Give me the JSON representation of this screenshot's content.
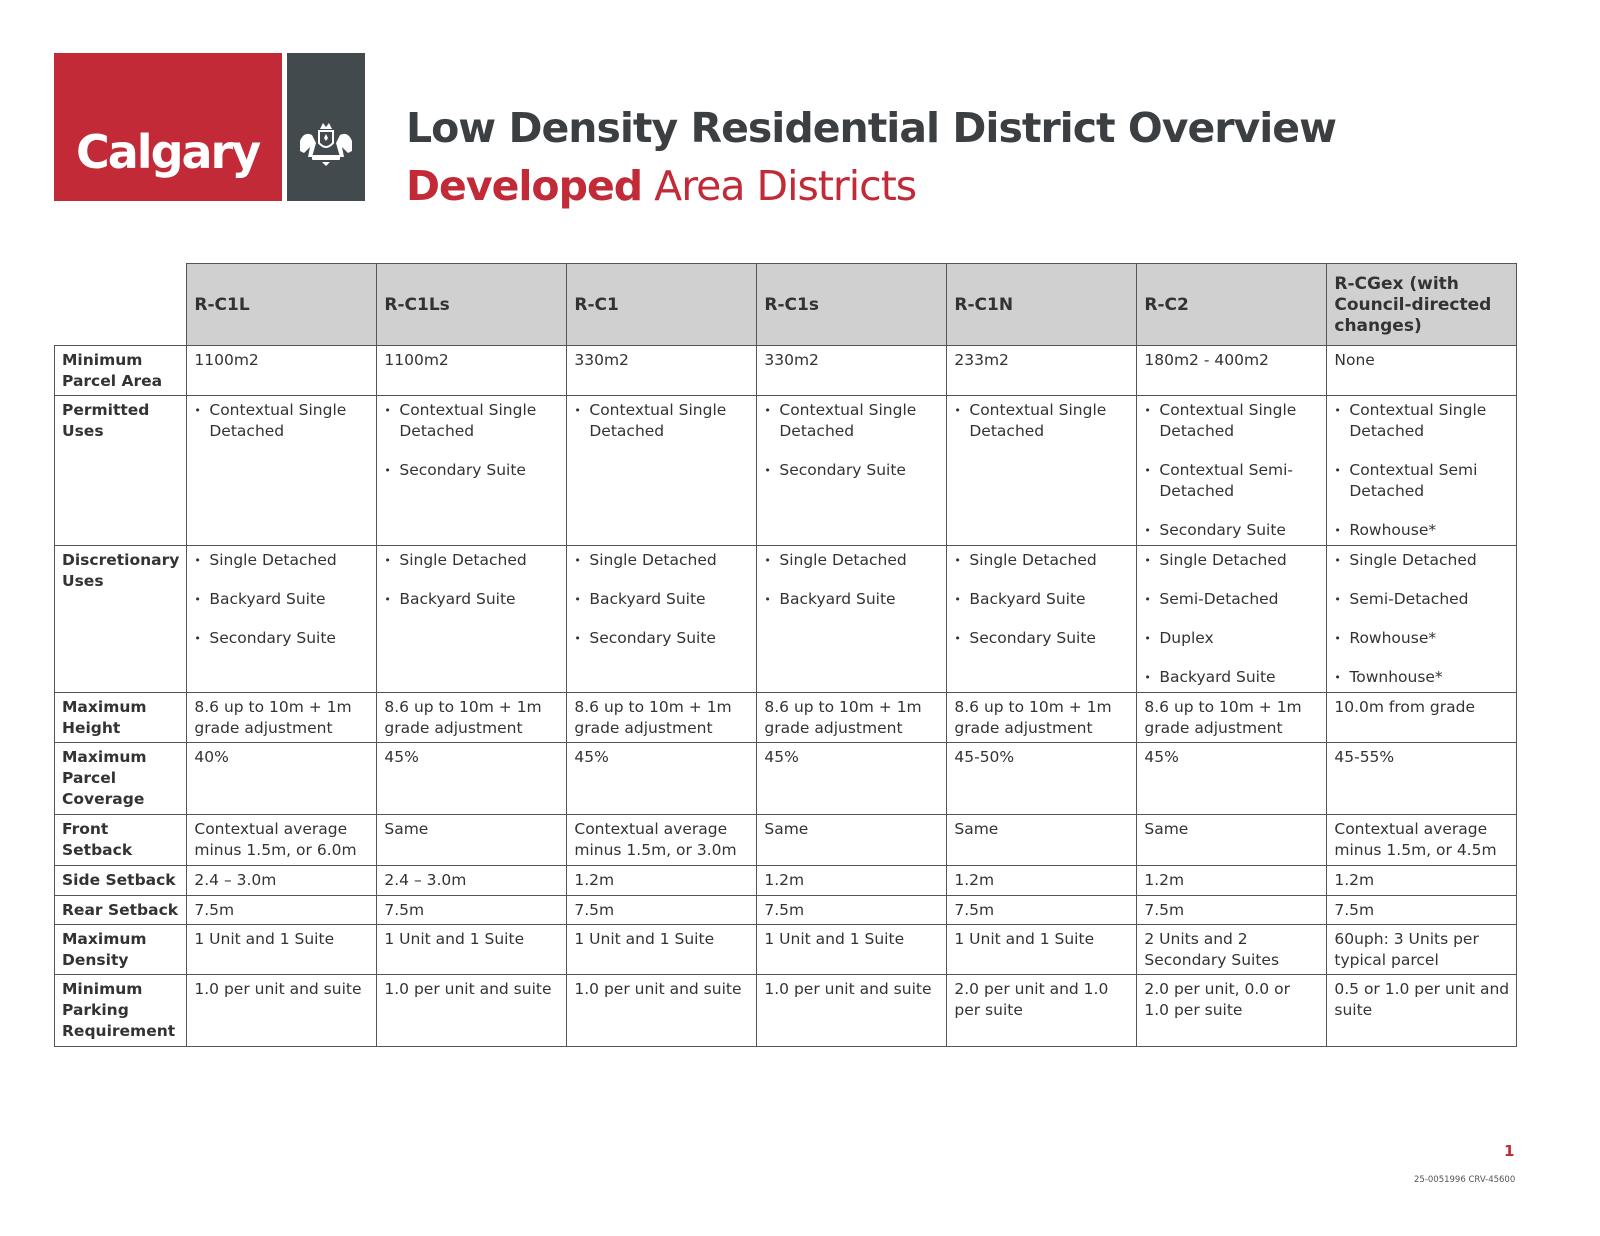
{
  "logo": {
    "text": "Calgary",
    "crest_motto": "ONWARD"
  },
  "header": {
    "title": "Low Density Residential District Overview",
    "subtitle_bold": "Developed",
    "subtitle_rest": " Area Districts"
  },
  "colors": {
    "brand_red": "#c12a36",
    "brand_grey": "#434a4e",
    "header_fill": "#d0d0d0"
  },
  "table": {
    "columns": [
      "R-C1L",
      "R-C1Ls",
      "R-C1",
      "R-C1s",
      "R-C1N",
      "R-C2",
      "R-CGex (with Council-directed changes)"
    ],
    "rows": [
      {
        "label": "Minimum Parcel Area",
        "cells": [
          "1100m2",
          "1100m2",
          "330m2",
          "330m2",
          "233m2",
          "180m2 - 400m2",
          "None"
        ]
      },
      {
        "label": "Permitted Uses",
        "cells": [
          [
            "Contextual Single Detached"
          ],
          [
            "Contextual Single Detached",
            "Secondary Suite"
          ],
          [
            "Contextual Single Detached"
          ],
          [
            "Contextual Single Detached",
            "Secondary Suite"
          ],
          [
            "Contextual Single Detached"
          ],
          [
            "Contextual Single Detached",
            "Contextual Semi-Detached",
            "Secondary Suite"
          ],
          [
            "Contextual Single Detached",
            "Contextual Semi Detached",
            "Rowhouse*"
          ]
        ]
      },
      {
        "label": "Discretionary Uses",
        "cells": [
          [
            "Single Detached",
            "Backyard Suite",
            "Secondary Suite"
          ],
          [
            "Single Detached",
            "Backyard Suite"
          ],
          [
            "Single Detached",
            "Backyard Suite",
            "Secondary Suite"
          ],
          [
            "Single Detached",
            "Backyard Suite"
          ],
          [
            "Single Detached",
            "Backyard Suite",
            "Secondary Suite"
          ],
          [
            "Single Detached",
            "Semi-Detached",
            "Duplex",
            "Backyard Suite"
          ],
          [
            "Single Detached",
            "Semi-Detached",
            "Rowhouse*",
            "Townhouse*"
          ]
        ]
      },
      {
        "label": "Maximum Height",
        "cells": [
          "8.6 up to 10m + 1m grade adjustment",
          "8.6 up to 10m + 1m grade adjustment",
          "8.6 up to 10m + 1m grade adjustment",
          "8.6 up to 10m + 1m grade adjustment",
          "8.6 up to 10m + 1m grade adjustment",
          "8.6 up to 10m + 1m grade adjustment",
          "10.0m from grade"
        ]
      },
      {
        "label": "Maximum Parcel Coverage",
        "cells": [
          "40%",
          "45%",
          "45%",
          "45%",
          "45-50%",
          "45%",
          "45-55%"
        ]
      },
      {
        "label": "Front Setback",
        "cells": [
          "Contextual average minus 1.5m, or 6.0m",
          "Same",
          "Contextual average minus 1.5m, or 3.0m",
          "Same",
          "Same",
          "Same",
          "Contextual average minus 1.5m, or 4.5m"
        ]
      },
      {
        "label": "Side Setback",
        "cells": [
          "2.4 – 3.0m",
          "2.4 – 3.0m",
          "1.2m",
          "1.2m",
          "1.2m",
          "1.2m",
          "1.2m"
        ]
      },
      {
        "label": "Rear Setback",
        "cells": [
          "7.5m",
          "7.5m",
          "7.5m",
          "7.5m",
          "7.5m",
          "7.5m",
          "7.5m"
        ]
      },
      {
        "label": "Maximum Density",
        "cells": [
          "1 Unit and 1 Suite",
          "1 Unit and 1 Suite",
          "1 Unit and 1 Suite",
          "1 Unit and 1 Suite",
          "1 Unit and 1 Suite",
          "2 Units and 2 Secondary Suites",
          "60uph: 3 Units per typical parcel"
        ]
      },
      {
        "label": "Minimum Parking Requirement",
        "cells": [
          "1.0 per unit and suite",
          "1.0 per unit and suite",
          "1.0 per unit and suite",
          "1.0 per unit and suite",
          "2.0 per unit and 1.0 per suite",
          "2.0 per unit, 0.0 or 1.0 per suite",
          "0.5 or 1.0 per unit and suite"
        ]
      }
    ]
  },
  "footer": {
    "page_number": "1",
    "doc_id": "25-0051996 CRV-45600"
  }
}
